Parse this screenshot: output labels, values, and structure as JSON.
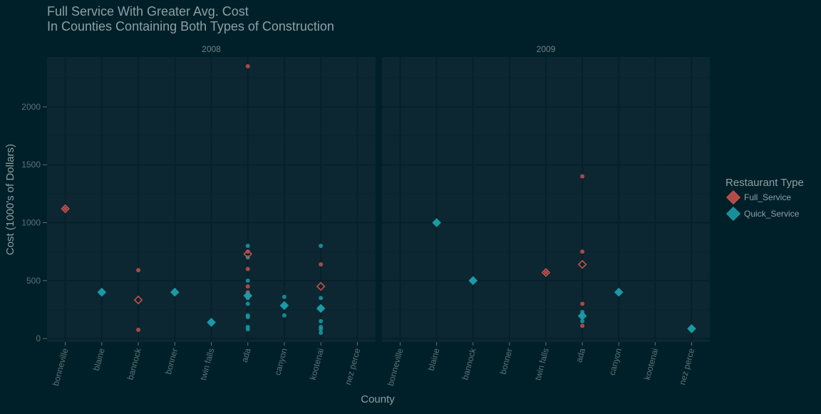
{
  "chart_data": {
    "type": "scatter",
    "title": "Full Service With Greater Avg. Cost",
    "subtitle": "In Counties Containing Both Types of Construction",
    "xlabel": "County",
    "ylabel": "Cost (1000's of Dollars)",
    "categories": [
      "bonneville",
      "blaine",
      "bannock",
      "bonner",
      "twin falls",
      "ada",
      "canyon",
      "kootenai",
      "nez perce"
    ],
    "yticks": [
      0,
      500,
      1000,
      1500,
      2000
    ],
    "ylim": [
      -30,
      2430
    ],
    "grid": true,
    "legend_position": "right",
    "legend": {
      "title": "Restaurant Type",
      "entries": [
        {
          "name": "Full_Service",
          "color": "#C4504E"
        },
        {
          "name": "Quick_Service",
          "color": "#1A9AA6"
        }
      ]
    },
    "colors": {
      "background": "#002029",
      "panel": "#0C2731",
      "grid_major": "#06202A",
      "grid_minor": "#0A242E",
      "text": "#8E9FA3",
      "strip_text": "#6F8186",
      "tick_text": "#5E7176"
    },
    "panels": [
      {
        "strip": "2008",
        "points": [
          {
            "x": "bonneville",
            "y": 1120,
            "series": "Full_Service"
          },
          {
            "x": "bannock",
            "y": 590,
            "series": "Full_Service"
          },
          {
            "x": "bannock",
            "y": 75,
            "series": "Full_Service"
          },
          {
            "x": "ada",
            "y": 2350,
            "series": "Full_Service"
          },
          {
            "x": "ada",
            "y": 750,
            "series": "Full_Service"
          },
          {
            "x": "ada",
            "y": 600,
            "series": "Full_Service"
          },
          {
            "x": "ada",
            "y": 450,
            "series": "Full_Service"
          },
          {
            "x": "ada",
            "y": 400,
            "series": "Full_Service"
          },
          {
            "x": "kootenai",
            "y": 640,
            "series": "Full_Service"
          },
          {
            "x": "ada",
            "y": 800,
            "series": "Quick_Service"
          },
          {
            "x": "ada",
            "y": 700,
            "series": "Quick_Service"
          },
          {
            "x": "ada",
            "y": 500,
            "series": "Quick_Service"
          },
          {
            "x": "ada",
            "y": 350,
            "series": "Quick_Service"
          },
          {
            "x": "ada",
            "y": 300,
            "series": "Quick_Service"
          },
          {
            "x": "ada",
            "y": 200,
            "series": "Quick_Service"
          },
          {
            "x": "ada",
            "y": 185,
            "series": "Quick_Service"
          },
          {
            "x": "ada",
            "y": 100,
            "series": "Quick_Service"
          },
          {
            "x": "ada",
            "y": 80,
            "series": "Quick_Service"
          },
          {
            "x": "canyon",
            "y": 360,
            "series": "Quick_Service"
          },
          {
            "x": "canyon",
            "y": 290,
            "series": "Quick_Service"
          },
          {
            "x": "canyon",
            "y": 280,
            "series": "Quick_Service"
          },
          {
            "x": "canyon",
            "y": 200,
            "series": "Quick_Service"
          },
          {
            "x": "kootenai",
            "y": 800,
            "series": "Quick_Service"
          },
          {
            "x": "kootenai",
            "y": 350,
            "series": "Quick_Service"
          },
          {
            "x": "kootenai",
            "y": 270,
            "series": "Quick_Service"
          },
          {
            "x": "kootenai",
            "y": 150,
            "series": "Quick_Service"
          },
          {
            "x": "kootenai",
            "y": 100,
            "series": "Quick_Service"
          },
          {
            "x": "kootenai",
            "y": 80,
            "series": "Quick_Service"
          },
          {
            "x": "kootenai",
            "y": 50,
            "series": "Quick_Service"
          }
        ],
        "means": [
          {
            "x": "bonneville",
            "y": 1120,
            "series": "Full_Service"
          },
          {
            "x": "bannock",
            "y": 333,
            "series": "Full_Service"
          },
          {
            "x": "ada",
            "y": 730,
            "series": "Full_Service"
          },
          {
            "x": "kootenai",
            "y": 450,
            "series": "Full_Service"
          },
          {
            "x": "blaine",
            "y": 400,
            "series": "Quick_Service"
          },
          {
            "x": "bonner",
            "y": 400,
            "series": "Quick_Service"
          },
          {
            "x": "twin falls",
            "y": 140,
            "series": "Quick_Service"
          },
          {
            "x": "ada",
            "y": 370,
            "series": "Quick_Service"
          },
          {
            "x": "canyon",
            "y": 285,
            "series": "Quick_Service"
          },
          {
            "x": "kootenai",
            "y": 260,
            "series": "Quick_Service"
          }
        ]
      },
      {
        "strip": "2009",
        "points": [
          {
            "x": "twin falls",
            "y": 570,
            "series": "Full_Service"
          },
          {
            "x": "ada",
            "y": 1400,
            "series": "Full_Service"
          },
          {
            "x": "ada",
            "y": 750,
            "series": "Full_Service"
          },
          {
            "x": "ada",
            "y": 300,
            "series": "Full_Service"
          },
          {
            "x": "ada",
            "y": 110,
            "series": "Full_Service"
          },
          {
            "x": "ada",
            "y": 230,
            "series": "Quick_Service"
          },
          {
            "x": "ada",
            "y": 150,
            "series": "Quick_Service"
          }
        ],
        "means": [
          {
            "x": "twin falls",
            "y": 570,
            "series": "Full_Service"
          },
          {
            "x": "ada",
            "y": 640,
            "series": "Full_Service"
          },
          {
            "x": "blaine",
            "y": 1000,
            "series": "Quick_Service"
          },
          {
            "x": "bannock",
            "y": 500,
            "series": "Quick_Service"
          },
          {
            "x": "ada",
            "y": 195,
            "series": "Quick_Service"
          },
          {
            "x": "canyon",
            "y": 400,
            "series": "Quick_Service"
          },
          {
            "x": "nez perce",
            "y": 85,
            "series": "Quick_Service"
          }
        ]
      }
    ]
  }
}
